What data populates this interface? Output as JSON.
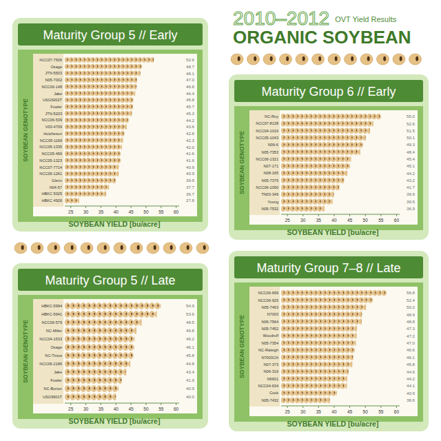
{
  "header": {
    "years": "2010–2012",
    "subtitle": "OVT Yield Results",
    "title": "ORGANIC SOYBEAN"
  },
  "chart_data": [
    {
      "type": "bar",
      "orientation": "horizontal",
      "title": "Maturity Group 5 // Early",
      "x_label": "SOYBEAN YIELD [bu/acre]",
      "y_label": "SOYBEAN GENOTYPE",
      "categories": [
        "NCC07-7506",
        "Osage",
        "JTN-5503",
        "N05-7002",
        "NCC06-148",
        "Jake",
        "USG5002T",
        "Fowler",
        "JTN-5203",
        "NCC06-539",
        "V03-4709",
        "Hutcheson",
        "NCC05-1169",
        "NCC05-1335",
        "NCC05-456",
        "NCC05-1323",
        "NCC07-7714",
        "NCC05-1261",
        "Glenn",
        "N04-57",
        "HBKC 5025",
        "HBKC 4926"
      ],
      "values": [
        52.6,
        48.7,
        48.1,
        47.0,
        46.8,
        46.4,
        45.8,
        45.7,
        45.3,
        44.2,
        43.6,
        42.8,
        42.3,
        42.0,
        41.6,
        41.6,
        40.9,
        40.9,
        39.9,
        37.7,
        36.7,
        27.8
      ],
      "value_labels": [
        "52.6",
        "48.7",
        "48.1",
        "47.0",
        "46.8",
        "46.4",
        "45.8",
        "45.7",
        "45.3",
        "44.2",
        "43.6",
        "42.8",
        "42.3",
        "42.0",
        "41.6",
        "41.6",
        "40.9",
        "40.9",
        "39.9",
        "37.7",
        "36.7",
        "27.8"
      ],
      "xlim": [
        23,
        61
      ],
      "xticks": [
        25,
        30,
        35,
        40,
        45,
        50,
        55,
        60
      ],
      "color": "#e9c48a",
      "data_labels": true,
      "grid": false
    },
    {
      "type": "bar",
      "orientation": "horizontal",
      "title": "Maturity Group 6 // Early",
      "x_label": "SOYBEAN YIELD [bu/acre]",
      "y_label": "SOYBEAN GENOTYPE",
      "categories": [
        "NC-Roy",
        "NCC07-8138",
        "NCC04-1016",
        "NCC05-1043",
        "N06-6",
        "N05-7353",
        "NCC06-1321",
        "N07-171",
        "N08-165",
        "N05-7375",
        "NCC06-1090",
        "TN03-349",
        "Young",
        "N05-7532"
      ],
      "values": [
        55.0,
        52.6,
        51.5,
        50.1,
        49.3,
        48.4,
        45.4,
        45.1,
        44.2,
        43.2,
        41.7,
        39.9,
        39.5,
        36.9
      ],
      "value_labels": [
        "55.0",
        "52.6",
        "51.5",
        "50.1",
        "49.3",
        "48.4",
        "45.4",
        "45.1",
        "44.2",
        "43.2",
        "41.7",
        "39.9",
        "39.5",
        "36.9"
      ],
      "xlim": [
        23,
        61
      ],
      "xticks": [
        25,
        30,
        35,
        40,
        45,
        50,
        55,
        60
      ],
      "color": "#e9c48a",
      "data_labels": true,
      "grid": false
    },
    {
      "type": "bar",
      "orientation": "horizontal",
      "title": "Maturity Group 5 // Late",
      "x_label": "SOYBEAN YIELD [bu/acre]",
      "y_label": "SOYBEAN GENOTYPE",
      "categories": [
        "HBKC-5994",
        "HBKC-5941",
        "NCC06-579",
        "NC-Miller",
        "NCC04-1533",
        "Osage",
        "NC-Tinius",
        "NCC06-2186",
        "Jake",
        "Fowler",
        "NC-Burton",
        "USG5601T"
      ],
      "values": [
        54.9,
        53.6,
        48.5,
        46.8,
        46.2,
        46.1,
        45.8,
        44.8,
        43.4,
        41.9,
        40.9,
        40.0
      ],
      "value_labels": [
        "54.9",
        "53.6",
        "48.5",
        "46.8",
        "46.2",
        "46.1",
        "45.8",
        "44.8",
        "43.4",
        "41.9",
        "40.9",
        "40.0"
      ],
      "xlim": [
        23,
        61
      ],
      "xticks": [
        25,
        30,
        35,
        40,
        45,
        50,
        55,
        60
      ],
      "color": "#e9c48a",
      "data_labels": true,
      "grid": false
    },
    {
      "type": "bar",
      "orientation": "horizontal",
      "title": "Maturity Group 7–8 // Late",
      "x_label": "SOYBEAN YIELD [bu/acre]",
      "y_label": "SOYBEAN GENOTYPE",
      "categories": [
        "NCC06-699",
        "NCC06-925",
        "N05-7463",
        "N7003",
        "N06-7564",
        "N05-7452",
        "Woodruff",
        "N05-7354",
        "NC-Raleigh",
        "N7003CN",
        "N07-373",
        "N06-316",
        "N6601",
        "NCC04-634",
        "Cook",
        "N05-7432"
      ],
      "values": [
        56.8,
        52.4,
        50.2,
        48.9,
        48.8,
        47.3,
        47.2,
        47.0,
        46.6,
        46.1,
        45.8,
        44.6,
        44.2,
        44.1,
        40.9,
        38.6
      ],
      "value_labels": [
        "56.8",
        "52.4",
        "50.2",
        "48.9",
        "48.8",
        "47.3",
        "47.2",
        "47.0",
        "46.6",
        "46.1",
        "45.8",
        "44.6",
        "44.2",
        "44.1",
        "40.9",
        "38.6"
      ],
      "xlim": [
        23,
        61
      ],
      "xticks": [
        25,
        30,
        35,
        40,
        45,
        50,
        55,
        60
      ],
      "color": "#e9c48a",
      "data_labels": true,
      "grid": false
    }
  ]
}
